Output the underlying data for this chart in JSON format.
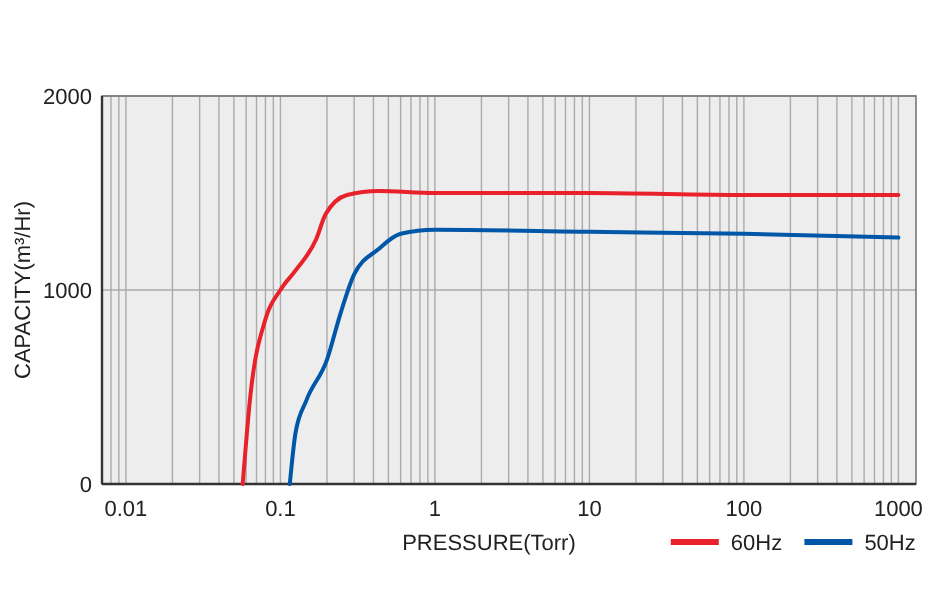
{
  "chart_data": {
    "type": "line",
    "xlabel": "PRESSURE(Torr)",
    "ylabel": "CAPACITY(m³/Hr)",
    "log": "x",
    "grid": true,
    "legend": "bottom right",
    "line_style": "solid",
    "marker": "none",
    "xlim": [
      0.007,
      1300
    ],
    "xticks": [
      0.01,
      0.1,
      1,
      10,
      100,
      1000
    ],
    "ylim": [
      0,
      2000
    ],
    "yticks": [
      0,
      1000,
      2000
    ],
    "series": [
      {
        "name": "60Hz",
        "color": "#e8212b",
        "x": [
          0.057,
          0.064,
          0.08,
          0.1,
          0.125,
          0.17,
          0.196,
          0.27,
          0.43,
          1,
          10,
          100,
          1000
        ],
        "values": [
          0,
          460,
          850,
          1000,
          1100,
          1260,
          1390,
          1490,
          1510,
          1500,
          1500,
          1490,
          1490
        ]
      },
      {
        "name": "50Hz",
        "color": "#0057a8",
        "x": [
          0.115,
          0.125,
          0.147,
          0.2,
          0.245,
          0.3,
          0.43,
          0.6,
          1,
          10,
          100,
          1000
        ],
        "values": [
          0,
          260,
          430,
          640,
          880,
          1080,
          1210,
          1290,
          1310,
          1300,
          1290,
          1270
        ]
      }
    ]
  }
}
